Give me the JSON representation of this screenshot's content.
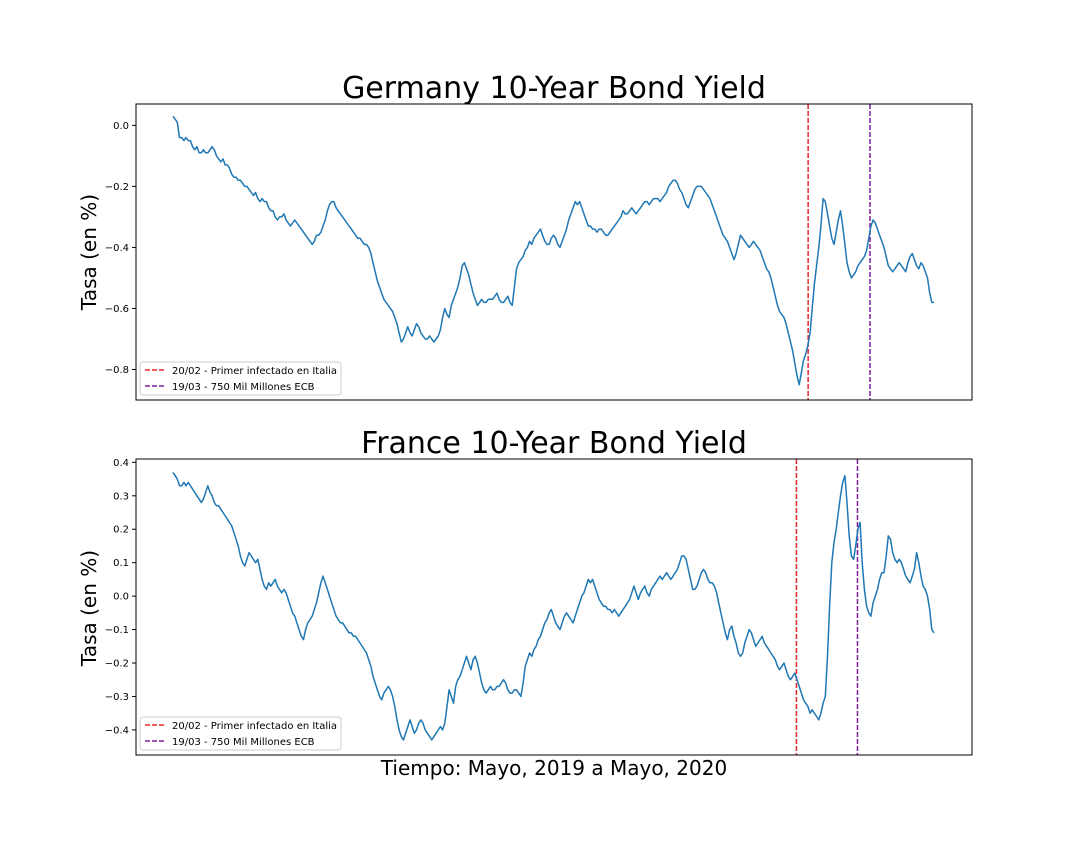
{
  "chart_data": [
    {
      "type": "line",
      "title": "Germany 10-Year Bond Yield",
      "ylabel": "Tasa (en %)",
      "xlabel": "",
      "ylim": [
        -0.9,
        0.07
      ],
      "yticks": [
        -0.8,
        -0.6,
        -0.4,
        -0.2,
        0.0
      ],
      "ytick_labels": [
        "−0.8",
        "−0.6",
        "−0.4",
        "−0.2",
        "0.0"
      ],
      "grid": false,
      "legend_placement": "lower-left",
      "colors": {
        "series": "#1f77b4",
        "event1": "#e8262b",
        "event2": "#7e1e9c"
      },
      "series": [
        {
          "values": [
            0.03,
            0.02,
            0.01,
            -0.04,
            -0.04,
            -0.05,
            -0.04,
            -0.05,
            -0.05,
            -0.07,
            -0.08,
            -0.07,
            -0.09,
            -0.09,
            -0.08,
            -0.09,
            -0.09,
            -0.08,
            -0.07,
            -0.08,
            -0.1,
            -0.11,
            -0.12,
            -0.11,
            -0.13,
            -0.13,
            -0.14,
            -0.16,
            -0.17,
            -0.17,
            -0.18,
            -0.18,
            -0.19,
            -0.2,
            -0.2,
            -0.21,
            -0.22,
            -0.23,
            -0.22,
            -0.24,
            -0.25,
            -0.24,
            -0.25,
            -0.25,
            -0.27,
            -0.28,
            -0.28,
            -0.3,
            -0.31,
            -0.3,
            -0.3,
            -0.29,
            -0.31,
            -0.32,
            -0.33,
            -0.32,
            -0.31,
            -0.32,
            -0.33,
            -0.34,
            -0.35,
            -0.36,
            -0.37,
            -0.38,
            -0.39,
            -0.38,
            -0.36,
            -0.36,
            -0.35,
            -0.33,
            -0.31,
            -0.28,
            -0.26,
            -0.25,
            -0.25,
            -0.27,
            -0.28,
            -0.29,
            -0.3,
            -0.31,
            -0.32,
            -0.33,
            -0.34,
            -0.35,
            -0.36,
            -0.37,
            -0.37,
            -0.38,
            -0.39,
            -0.39,
            -0.4,
            -0.42,
            -0.45,
            -0.48,
            -0.51,
            -0.53,
            -0.55,
            -0.57,
            -0.58,
            -0.59,
            -0.6,
            -0.61,
            -0.63,
            -0.65,
            -0.68,
            -0.71,
            -0.7,
            -0.68,
            -0.66,
            -0.68,
            -0.69,
            -0.67,
            -0.65,
            -0.66,
            -0.68,
            -0.69,
            -0.7,
            -0.7,
            -0.69,
            -0.7,
            -0.71,
            -0.7,
            -0.69,
            -0.67,
            -0.63,
            -0.6,
            -0.62,
            -0.63,
            -0.59,
            -0.57,
            -0.55,
            -0.53,
            -0.5,
            -0.46,
            -0.45,
            -0.47,
            -0.49,
            -0.52,
            -0.55,
            -0.57,
            -0.59,
            -0.58,
            -0.57,
            -0.58,
            -0.58,
            -0.57,
            -0.57,
            -0.57,
            -0.56,
            -0.55,
            -0.57,
            -0.58,
            -0.58,
            -0.57,
            -0.56,
            -0.58,
            -0.59,
            -0.53,
            -0.47,
            -0.45,
            -0.44,
            -0.43,
            -0.41,
            -0.4,
            -0.38,
            -0.39,
            -0.37,
            -0.36,
            -0.35,
            -0.34,
            -0.36,
            -0.38,
            -0.39,
            -0.39,
            -0.37,
            -0.36,
            -0.37,
            -0.39,
            -0.4,
            -0.38,
            -0.36,
            -0.34,
            -0.31,
            -0.29,
            -0.27,
            -0.25,
            -0.26,
            -0.25,
            -0.27,
            -0.29,
            -0.31,
            -0.33,
            -0.33,
            -0.34,
            -0.34,
            -0.35,
            -0.34,
            -0.34,
            -0.35,
            -0.36,
            -0.36,
            -0.35,
            -0.34,
            -0.33,
            -0.32,
            -0.31,
            -0.3,
            -0.28,
            -0.29,
            -0.29,
            -0.28,
            -0.27,
            -0.28,
            -0.29,
            -0.28,
            -0.27,
            -0.26,
            -0.25,
            -0.25,
            -0.26,
            -0.25,
            -0.24,
            -0.24,
            -0.24,
            -0.25,
            -0.24,
            -0.23,
            -0.22,
            -0.2,
            -0.19,
            -0.18,
            -0.18,
            -0.19,
            -0.21,
            -0.22,
            -0.24,
            -0.26,
            -0.27,
            -0.25,
            -0.23,
            -0.21,
            -0.2,
            -0.2,
            -0.2,
            -0.21,
            -0.22,
            -0.23,
            -0.24,
            -0.26,
            -0.28,
            -0.3,
            -0.32,
            -0.34,
            -0.36,
            -0.37,
            -0.38,
            -0.4,
            -0.42,
            -0.44,
            -0.42,
            -0.39,
            -0.36,
            -0.37,
            -0.38,
            -0.39,
            -0.4,
            -0.39,
            -0.38,
            -0.39,
            -0.4,
            -0.41,
            -0.43,
            -0.45,
            -0.47,
            -0.48,
            -0.5,
            -0.53,
            -0.56,
            -0.59,
            -0.61,
            -0.62,
            -0.63,
            -0.65,
            -0.68,
            -0.71,
            -0.74,
            -0.78,
            -0.82,
            -0.85,
            -0.81,
            -0.77,
            -0.75,
            -0.72,
            -0.68,
            -0.6,
            -0.52,
            -0.46,
            -0.4,
            -0.33,
            -0.24,
            -0.25,
            -0.29,
            -0.33,
            -0.37,
            -0.39,
            -0.35,
            -0.31,
            -0.28,
            -0.33,
            -0.39,
            -0.45,
            -0.48,
            -0.5,
            -0.49,
            -0.48,
            -0.46,
            -0.45,
            -0.44,
            -0.43,
            -0.41,
            -0.37,
            -0.33,
            -0.31,
            -0.32,
            -0.34,
            -0.36,
            -0.38,
            -0.4,
            -0.43,
            -0.46,
            -0.47,
            -0.48,
            -0.47,
            -0.46,
            -0.45,
            -0.46,
            -0.47,
            -0.48,
            -0.45,
            -0.43,
            -0.42,
            -0.44,
            -0.46,
            -0.47,
            -0.45,
            -0.46,
            -0.48,
            -0.5,
            -0.55,
            -0.58,
            -0.58
          ]
        }
      ],
      "events": [
        {
          "label": "20/02 - Primer infectado en Italia",
          "position": 0.804,
          "color": "#e8262b"
        },
        {
          "label": "19/03 - 750 Mil Millones ECB",
          "position": 0.878,
          "color": "#7e1e9c"
        }
      ]
    },
    {
      "type": "line",
      "title": "France 10-Year Bond Yield",
      "ylabel": "Tasa (en %)",
      "xlabel": "Tiempo: Mayo, 2019 a Mayo, 2020",
      "ylim": [
        -0.475,
        0.41
      ],
      "yticks": [
        -0.4,
        -0.3,
        -0.2,
        -0.1,
        0.0,
        0.1,
        0.2,
        0.3,
        0.4
      ],
      "ytick_labels": [
        "−0.4",
        "−0.3",
        "−0.2",
        "−0.1",
        "0.0",
        "0.1",
        "0.2",
        "0.3",
        "0.4"
      ],
      "grid": false,
      "legend_placement": "lower-left",
      "colors": {
        "series": "#1f77b4",
        "event1": "#e8262b",
        "event2": "#7e1e9c"
      },
      "series": [
        {
          "values": [
            0.37,
            0.36,
            0.35,
            0.33,
            0.33,
            0.34,
            0.33,
            0.34,
            0.33,
            0.32,
            0.31,
            0.3,
            0.29,
            0.28,
            0.29,
            0.31,
            0.33,
            0.31,
            0.3,
            0.28,
            0.27,
            0.27,
            0.26,
            0.25,
            0.24,
            0.23,
            0.22,
            0.21,
            0.19,
            0.17,
            0.15,
            0.12,
            0.1,
            0.09,
            0.11,
            0.13,
            0.12,
            0.11,
            0.1,
            0.11,
            0.08,
            0.05,
            0.03,
            0.02,
            0.04,
            0.03,
            0.04,
            0.05,
            0.03,
            0.02,
            0.01,
            0.02,
            0.01,
            -0.01,
            -0.03,
            -0.05,
            -0.06,
            -0.08,
            -0.1,
            -0.12,
            -0.13,
            -0.1,
            -0.08,
            -0.07,
            -0.06,
            -0.04,
            -0.02,
            0.01,
            0.04,
            0.06,
            0.04,
            0.02,
            0.0,
            -0.02,
            -0.04,
            -0.06,
            -0.07,
            -0.08,
            -0.08,
            -0.09,
            -0.1,
            -0.11,
            -0.11,
            -0.12,
            -0.12,
            -0.13,
            -0.14,
            -0.15,
            -0.16,
            -0.17,
            -0.19,
            -0.21,
            -0.24,
            -0.26,
            -0.28,
            -0.3,
            -0.31,
            -0.29,
            -0.28,
            -0.27,
            -0.28,
            -0.3,
            -0.33,
            -0.37,
            -0.4,
            -0.42,
            -0.43,
            -0.41,
            -0.39,
            -0.37,
            -0.39,
            -0.41,
            -0.4,
            -0.38,
            -0.37,
            -0.38,
            -0.4,
            -0.41,
            -0.42,
            -0.43,
            -0.42,
            -0.41,
            -0.4,
            -0.39,
            -0.4,
            -0.38,
            -0.33,
            -0.28,
            -0.3,
            -0.32,
            -0.27,
            -0.25,
            -0.24,
            -0.22,
            -0.2,
            -0.18,
            -0.2,
            -0.22,
            -0.19,
            -0.18,
            -0.2,
            -0.23,
            -0.26,
            -0.28,
            -0.29,
            -0.28,
            -0.27,
            -0.28,
            -0.28,
            -0.27,
            -0.27,
            -0.26,
            -0.25,
            -0.26,
            -0.28,
            -0.29,
            -0.29,
            -0.28,
            -0.28,
            -0.29,
            -0.3,
            -0.26,
            -0.21,
            -0.19,
            -0.17,
            -0.18,
            -0.16,
            -0.15,
            -0.13,
            -0.12,
            -0.1,
            -0.08,
            -0.07,
            -0.05,
            -0.04,
            -0.06,
            -0.08,
            -0.09,
            -0.1,
            -0.08,
            -0.06,
            -0.05,
            -0.06,
            -0.07,
            -0.08,
            -0.06,
            -0.04,
            -0.02,
            0.0,
            0.01,
            0.03,
            0.05,
            0.04,
            0.05,
            0.03,
            0.01,
            -0.01,
            -0.02,
            -0.03,
            -0.03,
            -0.04,
            -0.04,
            -0.05,
            -0.04,
            -0.05,
            -0.06,
            -0.05,
            -0.04,
            -0.03,
            -0.02,
            -0.01,
            0.01,
            0.03,
            0.01,
            -0.01,
            0.01,
            0.02,
            0.03,
            0.01,
            0.0,
            0.02,
            0.03,
            0.04,
            0.05,
            0.06,
            0.05,
            0.06,
            0.07,
            0.06,
            0.05,
            0.06,
            0.07,
            0.08,
            0.1,
            0.12,
            0.12,
            0.11,
            0.08,
            0.05,
            0.02,
            0.02,
            0.03,
            0.05,
            0.07,
            0.08,
            0.07,
            0.05,
            0.04,
            0.04,
            0.03,
            0.01,
            -0.02,
            -0.05,
            -0.08,
            -0.11,
            -0.13,
            -0.1,
            -0.09,
            -0.12,
            -0.14,
            -0.17,
            -0.18,
            -0.17,
            -0.14,
            -0.12,
            -0.1,
            -0.11,
            -0.13,
            -0.15,
            -0.14,
            -0.13,
            -0.12,
            -0.14,
            -0.15,
            -0.16,
            -0.17,
            -0.18,
            -0.19,
            -0.21,
            -0.22,
            -0.21,
            -0.2,
            -0.22,
            -0.24,
            -0.25,
            -0.24,
            -0.23,
            -0.25,
            -0.27,
            -0.29,
            -0.31,
            -0.32,
            -0.33,
            -0.35,
            -0.34,
            -0.35,
            -0.36,
            -0.37,
            -0.35,
            -0.32,
            -0.3,
            -0.18,
            -0.03,
            0.1,
            0.16,
            0.2,
            0.25,
            0.3,
            0.34,
            0.36,
            0.28,
            0.18,
            0.12,
            0.11,
            0.15,
            0.2,
            0.22,
            0.1,
            0.02,
            -0.03,
            -0.05,
            -0.06,
            -0.02,
            0.0,
            0.02,
            0.05,
            0.07,
            0.07,
            0.12,
            0.18,
            0.17,
            0.13,
            0.11,
            0.1,
            0.11,
            0.1,
            0.08,
            0.06,
            0.05,
            0.04,
            0.06,
            0.08,
            0.13,
            0.1,
            0.06,
            0.03,
            0.02,
            0.0,
            -0.04,
            -0.1,
            -0.11
          ]
        }
      ],
      "events": [
        {
          "label": "20/02 - Primer infectado en Italia",
          "position": 0.79,
          "color": "#e8262b"
        },
        {
          "label": "19/03 - 750 Mil Millones ECB",
          "position": 0.863,
          "color": "#7e1e9c"
        }
      ]
    }
  ]
}
